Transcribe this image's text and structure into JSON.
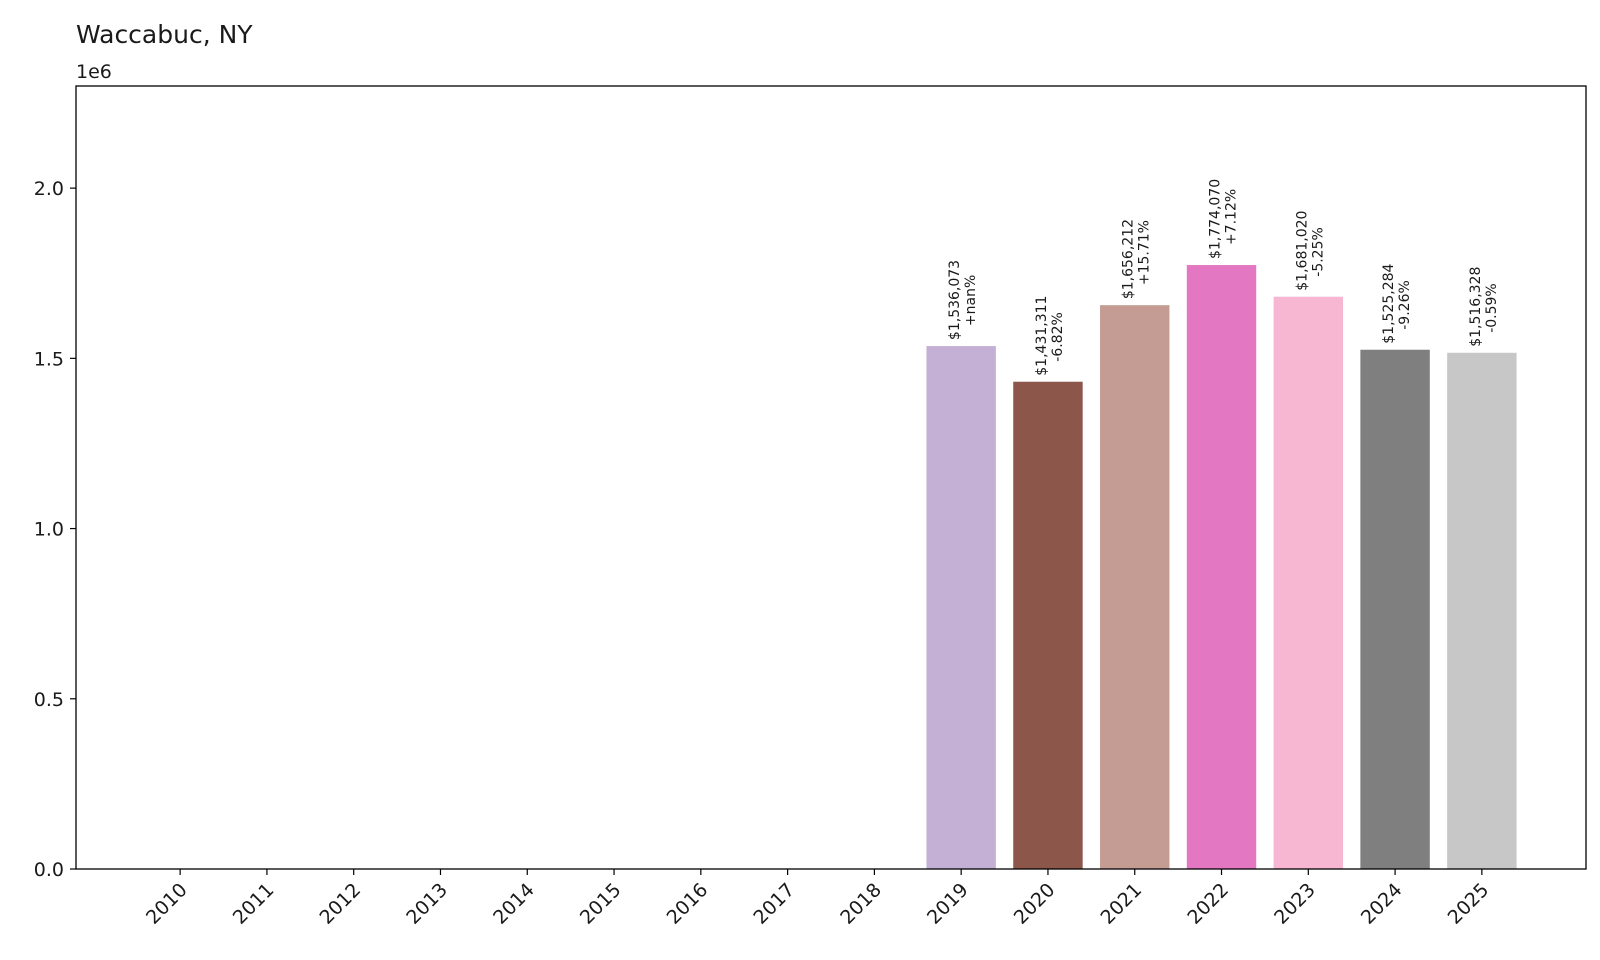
{
  "chart_data": {
    "type": "bar",
    "title": "Waccabuc, NY",
    "xlabel": "",
    "ylabel": "",
    "y_offset_label": "1e6",
    "ylim": [
      0,
      2300000
    ],
    "yticks": [
      0,
      500000,
      1000000,
      1500000,
      2000000
    ],
    "ytick_labels": [
      "0.0",
      "0.5",
      "1.0",
      "1.5",
      "2.0"
    ],
    "grid": false,
    "categories": [
      "2010",
      "2011",
      "2012",
      "2013",
      "2014",
      "2015",
      "2016",
      "2017",
      "2018",
      "2019",
      "2020",
      "2021",
      "2022",
      "2023",
      "2024",
      "2025"
    ],
    "values": [
      0,
      0,
      0,
      0,
      0,
      0,
      0,
      0,
      0,
      1536073,
      1431311,
      1656212,
      1774070,
      1681020,
      1525284,
      1516328
    ],
    "value_labels": [
      "",
      "",
      "",
      "",
      "",
      "",
      "",
      "",
      "",
      "$1,536,073",
      "$1,431,311",
      "$1,656,212",
      "$1,774,070",
      "$1,681,020",
      "$1,525,284",
      "$1,516,328"
    ],
    "change_labels": [
      "",
      "",
      "",
      "",
      "",
      "",
      "",
      "",
      "",
      "+nan%",
      "-6.82%",
      "+15.71%",
      "+7.12%",
      "-5.25%",
      "-9.26%",
      "-0.59%"
    ],
    "colors": [
      "#1f77b4",
      "#ff7f0e",
      "#2ca02c",
      "#d62728",
      "#9467bd",
      "#8c564b",
      "#e377c2",
      "#7f7f7f",
      "#bcbd22",
      "#c5b0d5",
      "#8c564b",
      "#c49c94",
      "#e377c2",
      "#f7b6d2",
      "#7f7f7f",
      "#c7c7c7"
    ]
  }
}
